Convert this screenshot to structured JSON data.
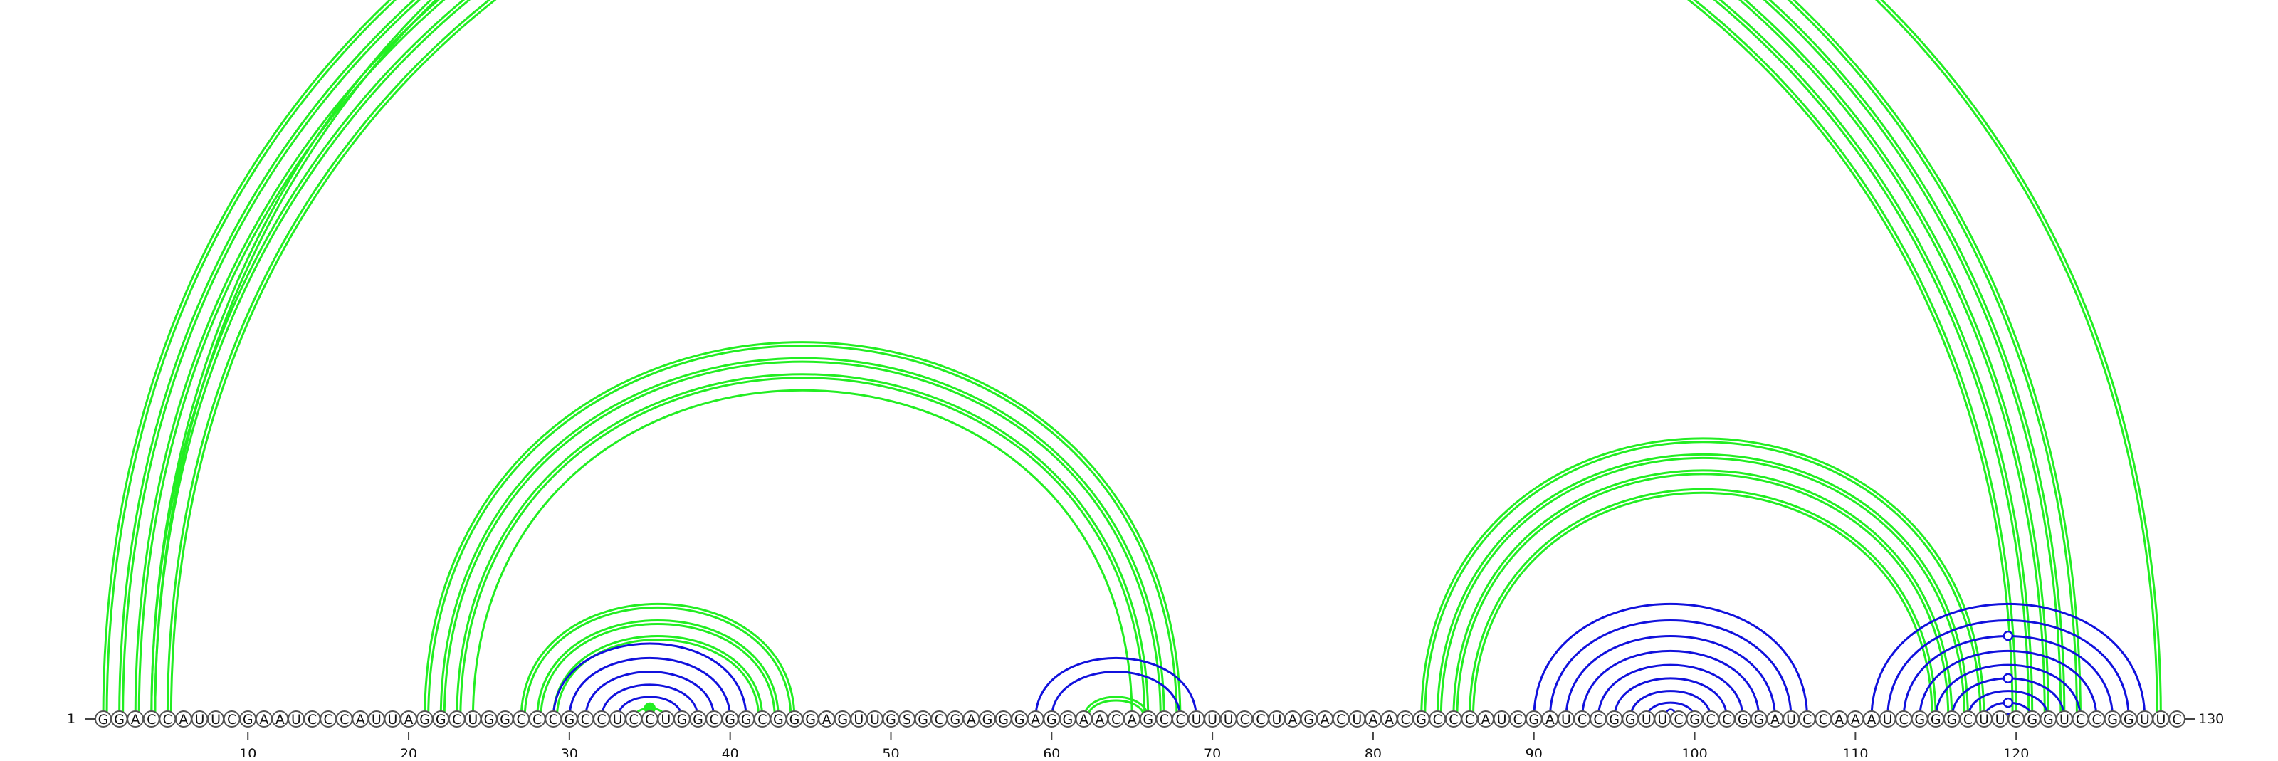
{
  "sequence": "GGACCAUUCGAAUCCCAUUAGGCUGGCCCGCCUCCUGGCGGCGGGAGUUGSGCGAGGGAGGAACAGCCUUUCCUAGACUAACGCCCAUCGAUCCGGUUCGCCGGAUCCAAAUCGGGCUUCGGUCCGGUUC",
  "start_label": "1",
  "end_label": "130",
  "tick_labels": [
    "10",
    "20",
    "30",
    "40",
    "50",
    "60",
    "70",
    "80",
    "90",
    "100",
    "110",
    "120"
  ],
  "tick_positions": [
    10,
    20,
    30,
    40,
    50,
    60,
    70,
    80,
    90,
    100,
    110,
    120
  ],
  "colors": {
    "outer": "#22ee22",
    "inner": "#1111dd"
  },
  "arc_groups": [
    {
      "color": "outer",
      "i": [
        1,
        2,
        3,
        4,
        5
      ],
      "j": [
        124,
        123,
        122,
        121,
        120
      ],
      "double": true
    },
    {
      "color": "outer",
      "i": [
        4
      ],
      "j": [
        129
      ],
      "double": true,
      "marker": "open"
    },
    {
      "color": "outer",
      "i": [
        21,
        22,
        23
      ],
      "j": [
        68,
        67,
        66
      ],
      "double": true
    },
    {
      "color": "outer",
      "i": [
        24
      ],
      "j": [
        65
      ],
      "double": false
    },
    {
      "color": "outer",
      "i": [
        27,
        28,
        29
      ],
      "j": [
        44,
        43,
        42
      ],
      "double": true
    },
    {
      "color": "outer",
      "i": [
        34
      ],
      "j": [
        36
      ],
      "double": false,
      "marker": "filled"
    },
    {
      "color": "inner",
      "i": [
        29,
        30,
        31,
        32,
        33
      ],
      "j": [
        41,
        40,
        39,
        38,
        37
      ],
      "double": false
    },
    {
      "color": "inner",
      "i": [
        59,
        60
      ],
      "j": [
        69,
        68
      ],
      "double": false
    },
    {
      "color": "outer",
      "i": [
        62
      ],
      "j": [
        66
      ],
      "double": true
    },
    {
      "color": "outer",
      "i": [
        83,
        84,
        85,
        86
      ],
      "j": [
        118,
        117,
        116,
        115
      ],
      "double": true
    },
    {
      "color": "inner",
      "i": [
        90,
        91,
        92,
        93,
        94,
        95,
        96,
        97,
        98
      ],
      "j": [
        107,
        106,
        105,
        104,
        103,
        102,
        101,
        100,
        99
      ],
      "double": false,
      "marker_index": 8
    },
    {
      "color": "inner",
      "i": [
        111,
        112,
        113,
        114,
        115,
        116,
        117,
        118,
        119
      ],
      "j": [
        128,
        127,
        126,
        125,
        124,
        123,
        122,
        121,
        120
      ],
      "double": false
    }
  ],
  "inner_markers": [
    {
      "pair": [
        98,
        99
      ]
    },
    {
      "pair": [
        118,
        121
      ]
    },
    {
      "pair": [
        116,
        123
      ]
    },
    {
      "pair": [
        113,
        126
      ]
    }
  ]
}
